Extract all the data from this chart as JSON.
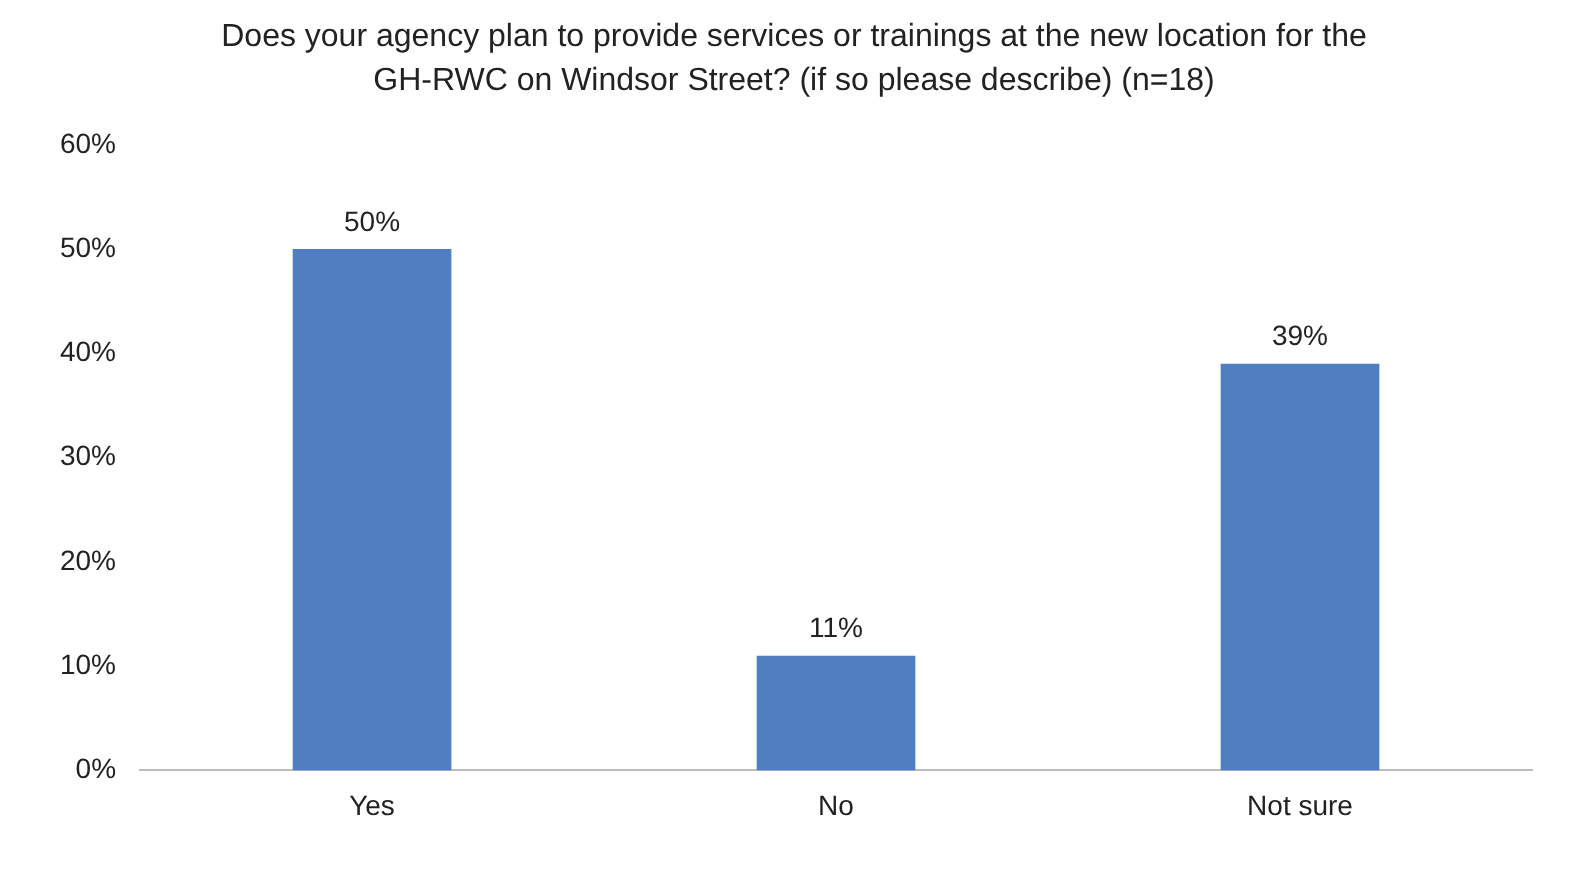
{
  "chart_data": {
    "type": "bar",
    "title": "Does your agency plan to provide services or trainings at the new location for the GH-RWC on Windsor Street? (if so please describe) (n=18)",
    "categories": [
      "Yes",
      "No",
      "Not sure"
    ],
    "values": [
      50,
      11,
      39
    ],
    "value_labels": [
      "50%",
      "11%",
      "39%"
    ],
    "color": "#4f7fc0",
    "ylim": [
      0,
      60
    ],
    "yticks": [
      {
        "value": 0,
        "label": "0%"
      },
      {
        "value": 10,
        "label": "10%"
      },
      {
        "value": 20,
        "label": "20%"
      },
      {
        "value": 30,
        "label": "30%"
      },
      {
        "value": 40,
        "label": "40%"
      },
      {
        "value": 50,
        "label": "50%"
      },
      {
        "value": 60,
        "label": "60%"
      }
    ],
    "grid": false
  }
}
